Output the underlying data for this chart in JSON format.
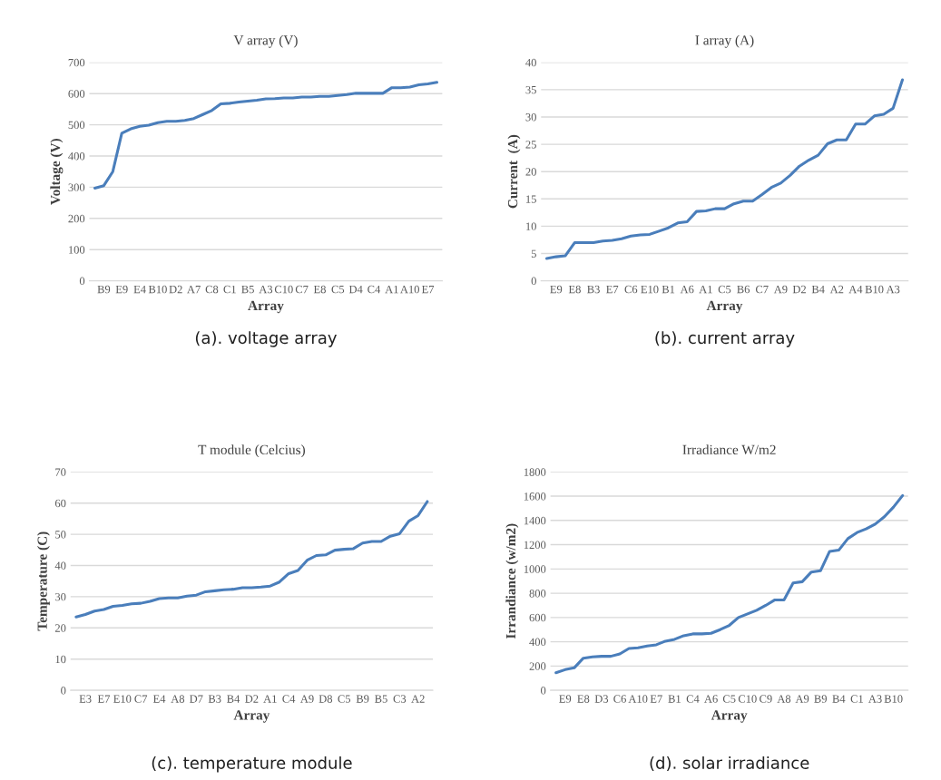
{
  "chart_data": [
    {
      "type": "line",
      "title": "V array (V)",
      "xlabel": "Array",
      "ylabel": "Voltage (V)",
      "annotations": [
        "(a). voltage array"
      ],
      "categories": [
        null,
        "B9",
        null,
        "E9",
        null,
        "E4",
        null,
        "B10",
        null,
        "D2",
        null,
        "A7",
        null,
        "C8",
        null,
        "C1",
        null,
        "B5",
        null,
        "A3",
        null,
        "C10",
        null,
        "C7",
        null,
        "E8",
        null,
        "C5",
        null,
        "D4",
        null,
        "C4",
        null,
        "A1",
        null,
        "A10",
        null,
        "E7",
        null
      ],
      "series": [
        {
          "color": "#4a7ebb",
          "values": [
            297,
            305,
            350,
            473,
            487,
            495,
            499,
            507,
            511,
            511,
            514,
            520,
            533,
            546,
            567,
            569,
            573,
            576,
            579,
            583,
            584,
            586,
            586,
            589,
            589,
            591,
            591,
            594,
            597,
            601,
            601,
            601,
            601,
            619,
            619,
            621,
            628,
            631,
            636
          ]
        }
      ],
      "ylim": [
        0,
        700
      ],
      "yticks": [
        0,
        100,
        200,
        300,
        400,
        500,
        600,
        700
      ],
      "grid": "y"
    },
    {
      "type": "line",
      "title": "I array (A)",
      "xlabel": "Array",
      "ylabel": "Current  (A)",
      "annotations": [
        "(b). current array"
      ],
      "categories": [
        null,
        "E9",
        null,
        "E8",
        null,
        "B3",
        null,
        "E7",
        null,
        "C6",
        null,
        "E10",
        null,
        "B1",
        null,
        "A6",
        null,
        "A1",
        null,
        "C5",
        null,
        "B6",
        null,
        "C7",
        null,
        "A9",
        null,
        "D2",
        null,
        "B4",
        null,
        "A2",
        null,
        "A4",
        null,
        "B10",
        null,
        "A3",
        null
      ],
      "series": [
        {
          "color": "#4a7ebb",
          "values": [
            4.1,
            4.4,
            4.6,
            7.0,
            7.0,
            7.0,
            7.3,
            7.4,
            7.7,
            8.2,
            8.4,
            8.5,
            9.1,
            9.7,
            10.6,
            10.8,
            12.7,
            12.8,
            13.2,
            13.2,
            14.1,
            14.6,
            14.6,
            15.8,
            17.1,
            17.9,
            19.3,
            21.0,
            22.1,
            23.0,
            25.1,
            25.8,
            25.8,
            28.7,
            28.7,
            30.2,
            30.5,
            31.6,
            36.8
          ]
        }
      ],
      "ylim": [
        0,
        40
      ],
      "yticks": [
        0,
        5,
        10,
        15,
        20,
        25,
        30,
        35,
        40
      ],
      "grid": "y"
    },
    {
      "type": "line",
      "title": "T module (Celcius)",
      "xlabel": "Array",
      "ylabel": "Temperature (C)",
      "annotations": [
        "(c). temperature module"
      ],
      "categories": [
        null,
        "E3",
        null,
        "E7",
        null,
        "E10",
        null,
        "C7",
        null,
        "E4",
        null,
        "A8",
        null,
        "D7",
        null,
        "B3",
        null,
        "B4",
        null,
        "D2",
        null,
        "A1",
        null,
        "C4",
        null,
        "A9",
        null,
        "D8",
        null,
        "C5",
        null,
        "B9",
        null,
        "B5",
        null,
        "C3",
        null,
        "A2",
        null
      ],
      "series": [
        {
          "color": "#4a7ebb",
          "values": [
            23.5,
            24.3,
            25.4,
            25.9,
            26.9,
            27.2,
            27.7,
            27.9,
            28.5,
            29.4,
            29.6,
            29.6,
            30.2,
            30.5,
            31.6,
            31.9,
            32.2,
            32.4,
            32.9,
            32.9,
            33.1,
            33.4,
            34.7,
            37.4,
            38.4,
            41.7,
            43.2,
            43.4,
            44.9,
            45.2,
            45.4,
            47.2,
            47.7,
            47.7,
            49.4,
            50.2,
            54.2,
            56.0,
            60.5
          ]
        }
      ],
      "ylim": [
        0,
        70
      ],
      "yticks": [
        0,
        10,
        20,
        30,
        40,
        50,
        60,
        70
      ],
      "grid": "y"
    },
    {
      "type": "line",
      "title": "Irradiance W/m2",
      "xlabel": "Array",
      "ylabel": "Irrandiance (w/m2)",
      "annotations": [
        "(d). solar irradiance"
      ],
      "categories": [
        null,
        "E9",
        null,
        "E8",
        null,
        "D3",
        null,
        "C6",
        null,
        "A10",
        null,
        "E7",
        null,
        "B1",
        null,
        "C4",
        null,
        "A6",
        null,
        "C5",
        null,
        "C10",
        null,
        "C9",
        null,
        "A8",
        null,
        "A9",
        null,
        "B9",
        null,
        "B4",
        null,
        "C1",
        null,
        "A3",
        null,
        "B10",
        null
      ],
      "series": [
        {
          "color": "#4a7ebb",
          "values": [
            145,
            170,
            185,
            265,
            275,
            280,
            280,
            300,
            345,
            350,
            365,
            375,
            405,
            420,
            450,
            465,
            465,
            470,
            500,
            535,
            600,
            630,
            660,
            700,
            745,
            745,
            885,
            895,
            975,
            985,
            1145,
            1155,
            1250,
            1300,
            1330,
            1370,
            1430,
            1510,
            1605
          ]
        }
      ],
      "ylim": [
        0,
        1800
      ],
      "yticks": [
        0,
        200,
        400,
        600,
        800,
        1000,
        1200,
        1400,
        1600,
        1800
      ],
      "grid": "y"
    }
  ]
}
